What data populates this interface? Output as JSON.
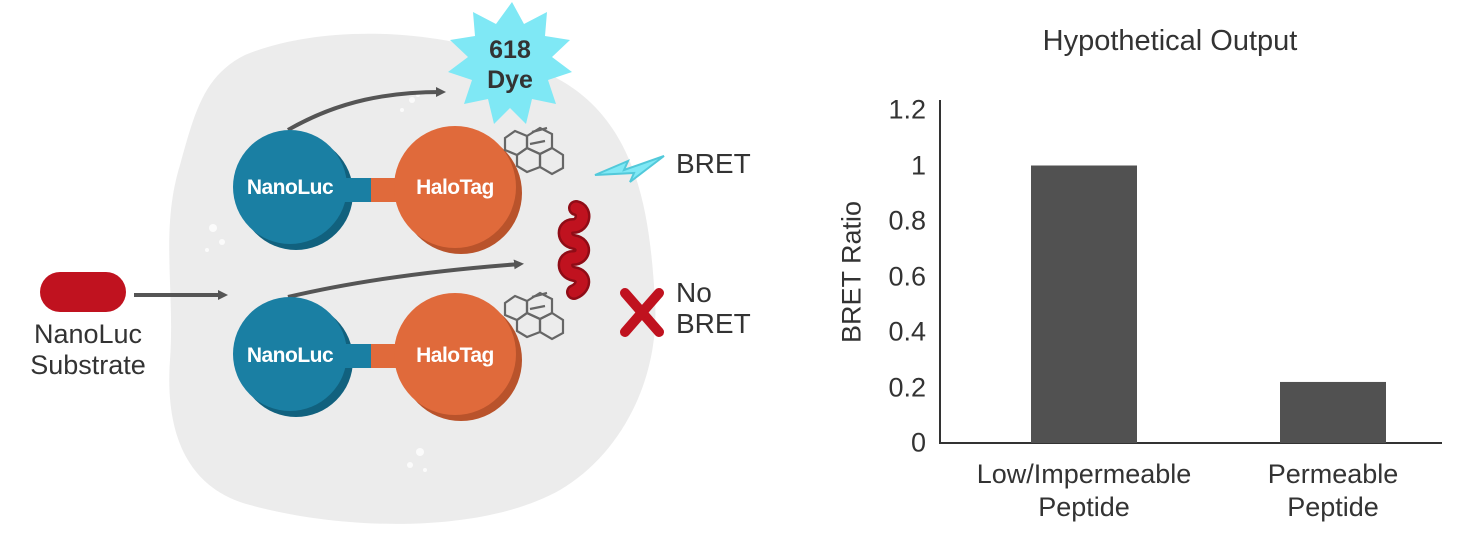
{
  "diagram": {
    "substrate_label_line1": "NanoLuc",
    "substrate_label_line2": "Substrate",
    "nanoluc_label": "NanoLuc",
    "halotag_label": "HaloTag",
    "dye_label_line1": "618",
    "dye_label_line2": "Dye",
    "bret_label": "BRET",
    "no_bret_line1": "No",
    "no_bret_line2": "BRET",
    "colors": {
      "cell": "#ececec",
      "nanoluc": "#1a7fa3",
      "nanoluc_shadow": "#11617e",
      "halotag": "#e06a3b",
      "halotag_shadow": "#b9532b",
      "substrate": "#c0121f",
      "dye_burst": "#7fe8f5",
      "cross": "#c0121f",
      "arrow": "#555555"
    }
  },
  "chart_data": {
    "type": "bar",
    "title": "Hypothetical Output",
    "ylabel": "BRET Ratio",
    "xlabel": "",
    "categories": [
      [
        "Low/Impermeable",
        "Peptide"
      ],
      [
        "Permeable",
        "Peptide"
      ]
    ],
    "values": [
      1.0,
      0.22
    ],
    "ylim": [
      0,
      1.2
    ],
    "yticks": [
      "0",
      "0.2",
      "0.4",
      "0.6",
      "0.8",
      "1",
      "1.2"
    ],
    "bar_color": "#515151",
    "grid": false,
    "legend": "none"
  }
}
